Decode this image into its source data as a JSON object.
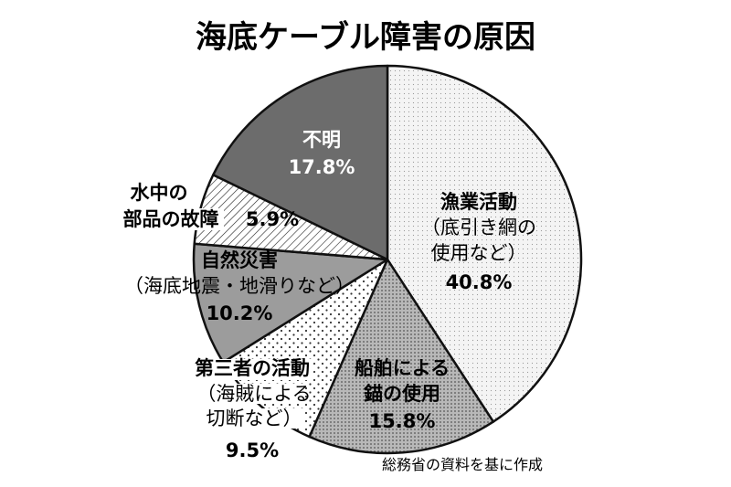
{
  "chart_data": {
    "type": "pie",
    "title": "海底ケーブル障害の原因",
    "slices": [
      {
        "label": [
          "漁業活動",
          "（底引き網の",
          "使用など）"
        ],
        "value": 40.8,
        "value_text": "40.8%",
        "fill": "dots-light"
      },
      {
        "label": [
          "船舶による",
          "錨の使用"
        ],
        "value": 15.8,
        "value_text": "15.8%",
        "fill": "dots-dark"
      },
      {
        "label": [
          "第三者の活動",
          "（海賊による",
          "切断など）"
        ],
        "value": 9.5,
        "value_text": "9.5%",
        "fill": "dots-sparse"
      },
      {
        "label": [
          "自然災害",
          "（海底地震・地滑りなど）"
        ],
        "value": 10.2,
        "value_text": "10.2%",
        "fill": "gray"
      },
      {
        "label": [
          "水中の",
          "部品の故障"
        ],
        "value": 5.9,
        "value_text": "5.9%",
        "fill": "hatch"
      },
      {
        "label": [
          "不明"
        ],
        "value": 17.8,
        "value_text": "17.8%",
        "fill": "dark"
      }
    ],
    "start_angle": "12 o'clock",
    "direction": "clockwise",
    "legend": "none",
    "source": "総務省の資料を基に作成"
  }
}
